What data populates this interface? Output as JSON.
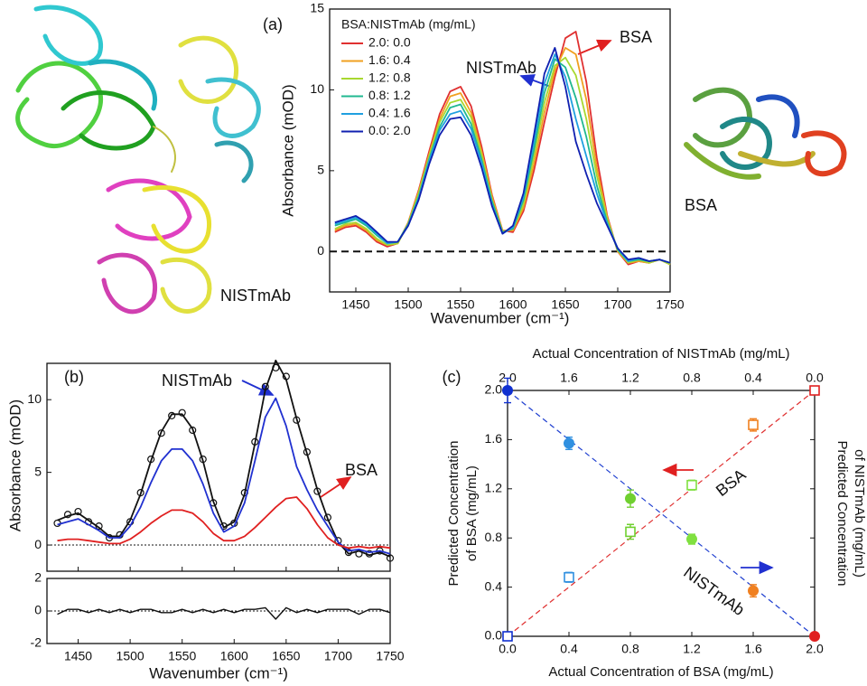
{
  "structure_labels": [
    {
      "text": "NISTmAb",
      "color": "#2020c8"
    },
    {
      "text": "BSA",
      "color": "#e03030"
    }
  ],
  "chart_data": [
    {
      "type": "line",
      "panel": "(a)",
      "xlabel": "Wavenumber (cm⁻¹)",
      "ylabel": "Absorbance (mOD)",
      "xlim": [
        1425,
        1750
      ],
      "ylim": [
        -2.5,
        15
      ],
      "xticks": [
        1450,
        1500,
        1550,
        1600,
        1650,
        1700,
        1750
      ],
      "yticks": [
        0,
        5,
        10,
        15
      ],
      "hline": 0,
      "legend_title": "BSA:NISTmAb (mg/mL)",
      "x": [
        1430,
        1440,
        1450,
        1460,
        1470,
        1480,
        1490,
        1500,
        1510,
        1520,
        1530,
        1540,
        1550,
        1560,
        1570,
        1580,
        1590,
        1600,
        1610,
        1620,
        1630,
        1640,
        1650,
        1660,
        1670,
        1680,
        1690,
        1700,
        1710,
        1720,
        1730,
        1740,
        1750
      ],
      "series": [
        {
          "name": "2.0: 0.0",
          "color": "#e03030",
          "values": [
            1.2,
            1.5,
            1.6,
            1.2,
            0.6,
            0.3,
            0.5,
            1.8,
            3.8,
            6.2,
            8.5,
            9.9,
            10.2,
            9.0,
            6.5,
            3.5,
            1.3,
            1.2,
            2.5,
            5.0,
            8.0,
            10.8,
            13.2,
            13.6,
            10.5,
            5.8,
            2.2,
            0.0,
            -0.8,
            -0.6,
            -0.7,
            -0.5,
            -0.8
          ]
        },
        {
          "name": "1.6: 0.4",
          "color": "#f0a020",
          "values": [
            1.3,
            1.6,
            1.7,
            1.3,
            0.7,
            0.4,
            0.5,
            1.8,
            3.7,
            6.0,
            8.2,
            9.6,
            9.8,
            8.6,
            6.2,
            3.4,
            1.3,
            1.3,
            2.7,
            5.4,
            8.6,
            11.2,
            12.6,
            12.2,
            9.4,
            5.2,
            2.1,
            0.0,
            -0.7,
            -0.6,
            -0.7,
            -0.5,
            -0.8
          ]
        },
        {
          "name": "1.2: 0.8",
          "color": "#a8d830",
          "values": [
            1.4,
            1.7,
            1.8,
            1.4,
            0.8,
            0.4,
            0.5,
            1.7,
            3.6,
            5.9,
            8.0,
            9.2,
            9.4,
            8.3,
            6.0,
            3.2,
            1.2,
            1.4,
            2.9,
            5.9,
            9.2,
            11.5,
            12.0,
            10.9,
            8.2,
            4.7,
            2.0,
            0.1,
            -0.7,
            -0.5,
            -0.7,
            -0.5,
            -0.8
          ]
        },
        {
          "name": "0.8: 1.2",
          "color": "#20b890",
          "values": [
            1.6,
            1.8,
            2.0,
            1.6,
            1.0,
            0.5,
            0.6,
            1.7,
            3.4,
            5.7,
            7.7,
            8.9,
            9.1,
            7.9,
            5.7,
            3.1,
            1.2,
            1.4,
            3.2,
            6.3,
            9.8,
            11.9,
            11.4,
            9.5,
            7.1,
            4.1,
            1.8,
            0.1,
            -0.6,
            -0.5,
            -0.6,
            -0.5,
            -0.7
          ]
        },
        {
          "name": "0.4: 1.6",
          "color": "#20a0e0",
          "values": [
            1.7,
            1.9,
            2.1,
            1.7,
            1.1,
            0.5,
            0.6,
            1.6,
            3.3,
            5.6,
            7.5,
            8.5,
            8.7,
            7.6,
            5.5,
            2.9,
            1.1,
            1.5,
            3.4,
            6.8,
            10.4,
            12.2,
            10.8,
            8.2,
            5.9,
            3.6,
            1.7,
            0.2,
            -0.6,
            -0.4,
            -0.6,
            -0.5,
            -0.7
          ]
        },
        {
          "name": "0.0: 2.0",
          "color": "#1020b0",
          "values": [
            1.8,
            2.0,
            2.2,
            1.8,
            1.2,
            0.6,
            0.6,
            1.6,
            3.2,
            5.4,
            7.2,
            8.2,
            8.3,
            7.2,
            5.2,
            2.8,
            1.1,
            1.6,
            3.6,
            7.2,
            11.0,
            12.6,
            10.2,
            6.8,
            4.8,
            3.0,
            1.6,
            0.2,
            -0.5,
            -0.4,
            -0.6,
            -0.5,
            -0.7
          ]
        }
      ],
      "annotations": [
        {
          "text": "BSA",
          "color": "#e03030"
        },
        {
          "text": "NISTmAb",
          "color": "#2020c8"
        }
      ]
    },
    {
      "type": "line",
      "panel": "(b)",
      "ylabel": "Absorbance (mOD)",
      "xlim": [
        1420,
        1750
      ],
      "ylim": [
        -1.8,
        12.5
      ],
      "yticks": [
        0,
        5,
        10
      ],
      "hline": 0,
      "x": [
        1430,
        1440,
        1450,
        1460,
        1470,
        1480,
        1490,
        1500,
        1510,
        1520,
        1530,
        1540,
        1550,
        1560,
        1570,
        1580,
        1590,
        1600,
        1610,
        1620,
        1630,
        1640,
        1650,
        1660,
        1670,
        1680,
        1690,
        1700,
        1710,
        1720,
        1730,
        1740,
        1750
      ],
      "series": [
        {
          "color": "#111111",
          "marker": "circle",
          "values": [
            1.5,
            2.1,
            2.3,
            1.6,
            1.3,
            0.5,
            0.7,
            1.6,
            3.6,
            5.9,
            7.7,
            8.9,
            9.1,
            7.9,
            5.9,
            2.9,
            1.3,
            1.5,
            3.6,
            7.1,
            10.9,
            12.2,
            11.6,
            8.6,
            6.4,
            3.7,
            1.9,
            0.3,
            -0.5,
            -0.6,
            -0.6,
            -0.4,
            -0.9
          ]
        },
        {
          "color": "#111111",
          "values": [
            1.7,
            2.0,
            2.2,
            1.7,
            1.2,
            0.6,
            0.6,
            1.7,
            3.5,
            5.8,
            7.8,
            9.0,
            9.0,
            8.0,
            5.8,
            3.0,
            1.2,
            1.6,
            3.5,
            7.0,
            10.7,
            12.7,
            11.4,
            8.7,
            6.3,
            3.8,
            1.8,
            0.2,
            -0.6,
            -0.4,
            -0.7,
            -0.5,
            -0.8
          ]
        },
        {
          "color": "#2030d0",
          "values": [
            1.4,
            1.6,
            1.8,
            1.4,
            1.0,
            0.5,
            0.5,
            1.3,
            2.6,
            4.3,
            5.8,
            6.6,
            6.6,
            5.8,
            4.2,
            2.2,
            0.9,
            1.3,
            2.9,
            5.8,
            8.8,
            10.1,
            8.2,
            5.4,
            3.8,
            2.4,
            1.3,
            0.2,
            -0.4,
            -0.3,
            -0.5,
            -0.4,
            -0.6
          ]
        },
        {
          "color": "#e02020",
          "values": [
            0.3,
            0.4,
            0.4,
            0.3,
            0.2,
            0.1,
            0.1,
            0.4,
            0.9,
            1.5,
            2.0,
            2.4,
            2.4,
            2.2,
            1.6,
            0.8,
            0.3,
            0.3,
            0.6,
            1.2,
            1.9,
            2.6,
            3.2,
            3.3,
            2.5,
            1.4,
            0.5,
            0.0,
            -0.2,
            -0.1,
            -0.2,
            -0.1,
            -0.2
          ]
        }
      ],
      "annotations": [
        {
          "text": "NISTmAb",
          "color": "#2030d0"
        },
        {
          "text": "BSA",
          "color": "#e02020"
        }
      ]
    },
    {
      "type": "line",
      "xlabel": "Wavenumber (cm⁻¹)",
      "xlim": [
        1420,
        1750
      ],
      "ylim": [
        -2,
        2
      ],
      "xticks": [
        1450,
        1500,
        1550,
        1600,
        1650,
        1700,
        1750
      ],
      "yticks": [
        -2,
        0,
        2
      ],
      "hline": 0,
      "x": [
        1430,
        1440,
        1450,
        1460,
        1470,
        1480,
        1490,
        1500,
        1510,
        1520,
        1530,
        1540,
        1550,
        1560,
        1570,
        1580,
        1590,
        1600,
        1610,
        1620,
        1630,
        1640,
        1650,
        1660,
        1670,
        1680,
        1690,
        1700,
        1710,
        1720,
        1730,
        1740,
        1750
      ],
      "series": [
        {
          "color": "#111111",
          "values": [
            -0.2,
            0.1,
            0.1,
            -0.1,
            0.1,
            -0.1,
            0.1,
            -0.1,
            0.1,
            0.1,
            -0.1,
            -0.1,
            0.1,
            -0.1,
            0.1,
            -0.1,
            0.1,
            -0.1,
            0.1,
            0.1,
            0.2,
            -0.5,
            0.2,
            -0.1,
            0.1,
            -0.1,
            0.1,
            0.1,
            0.1,
            -0.2,
            0.1,
            0.1,
            -0.1
          ]
        }
      ]
    },
    {
      "type": "scatter",
      "panel": "(c)",
      "xlabel": "Actual Concentration of BSA (mg/mL)",
      "x2label": "Actual Concentration of NISTmAb (mg/mL)",
      "ylabel": [
        "Predicted Concentration",
        "of BSA (mg/mL)"
      ],
      "y2label": [
        "Predicted Concentration",
        "of NISTmAb (mg/mL)"
      ],
      "xlim": [
        0,
        2
      ],
      "ylim": [
        0,
        2
      ],
      "x2lim": [
        2,
        0
      ],
      "y2lim": [
        0,
        2
      ],
      "xticks": [
        {
          "value": 0,
          "label": "0.0"
        },
        {
          "value": 0.4,
          "label": "0.4"
        },
        {
          "value": 0.8,
          "label": "0.8"
        },
        {
          "value": 1.2,
          "label": "1.2"
        },
        {
          "value": 1.6,
          "label": "1.6"
        },
        {
          "value": 2,
          "label": "2.0"
        }
      ],
      "x2ticks": [
        {
          "value": 2,
          "label": "2.0"
        },
        {
          "value": 1.6,
          "label": "1.6"
        },
        {
          "value": 1.2,
          "label": "1.2"
        },
        {
          "value": 0.8,
          "label": "0.8"
        },
        {
          "value": 0.4,
          "label": "0.4"
        },
        {
          "value": 0,
          "label": "0.0"
        }
      ],
      "yticks": [
        {
          "value": 0,
          "label": "0.0"
        },
        {
          "value": 0.4,
          "label": "0.4"
        },
        {
          "value": 0.8,
          "label": "0.8"
        },
        {
          "value": 1.2,
          "label": "1.2"
        },
        {
          "value": 1.6,
          "label": "1.6"
        },
        {
          "value": 2,
          "label": "2.0"
        }
      ],
      "x": [
        0,
        0.4,
        0.8,
        1.2,
        1.6,
        2.0
      ],
      "series": [
        {
          "name": "BSA",
          "marker": "open-square",
          "line_color": "#e03030",
          "colors": [
            "#1030d0",
            "#3090e0",
            "#70d030",
            "#80e040",
            "#f08020",
            "#e02020"
          ],
          "values": [
            0.0,
            0.48,
            0.85,
            1.23,
            1.72,
            2.0
          ],
          "errors": [
            0.02,
            0.04,
            0.06,
            0.04,
            0.05,
            0.02
          ]
        },
        {
          "name": "NISTmAb",
          "marker": "filled-circle",
          "axis": "y2",
          "line_color": "#2040d0",
          "colors": [
            "#1030d0",
            "#3090e0",
            "#70d030",
            "#80e040",
            "#f08020",
            "#e02020"
          ],
          "values": [
            2.0,
            1.57,
            1.12,
            0.79,
            0.37,
            0.0
          ],
          "errors": [
            0.1,
            0.05,
            0.07,
            0.04,
            0.05,
            0.02
          ]
        }
      ]
    }
  ]
}
